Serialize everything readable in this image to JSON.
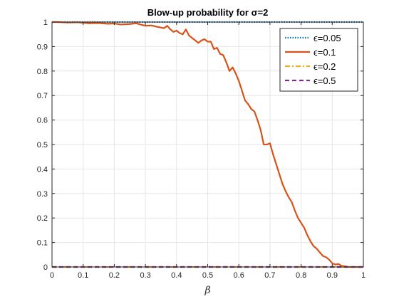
{
  "chart_data": {
    "type": "line",
    "title": "Blow-up probability for σ=2",
    "xlabel": "β",
    "ylabel": "",
    "xlim": [
      0,
      1
    ],
    "ylim": [
      0,
      1
    ],
    "x_ticks": [
      "0",
      "0.1",
      "0.2",
      "0.3",
      "0.4",
      "0.5",
      "0.6",
      "0.7",
      "0.8",
      "0.9",
      "1"
    ],
    "y_ticks": [
      "0",
      "0.1",
      "0.2",
      "0.3",
      "0.4",
      "0.5",
      "0.6",
      "0.7",
      "0.8",
      "0.9",
      "1"
    ],
    "grid": true,
    "legend_position": "top-right",
    "series": [
      {
        "name": "ϵ=0.05",
        "color": "#0072BD",
        "style": "dotted",
        "x": [
          0,
          1
        ],
        "y": [
          1,
          1
        ]
      },
      {
        "name": "ϵ=0.1",
        "color": "#D95319",
        "style": "solid",
        "x": [
          0,
          0.02,
          0.05,
          0.08,
          0.1,
          0.12,
          0.15,
          0.18,
          0.2,
          0.22,
          0.25,
          0.27,
          0.29,
          0.3,
          0.32,
          0.34,
          0.36,
          0.37,
          0.38,
          0.39,
          0.4,
          0.41,
          0.42,
          0.43,
          0.44,
          0.45,
          0.46,
          0.47,
          0.48,
          0.49,
          0.5,
          0.51,
          0.52,
          0.53,
          0.54,
          0.55,
          0.56,
          0.57,
          0.58,
          0.59,
          0.6,
          0.61,
          0.62,
          0.63,
          0.64,
          0.65,
          0.66,
          0.67,
          0.68,
          0.69,
          0.7,
          0.71,
          0.72,
          0.73,
          0.74,
          0.75,
          0.76,
          0.77,
          0.78,
          0.79,
          0.8,
          0.81,
          0.82,
          0.83,
          0.84,
          0.85,
          0.86,
          0.87,
          0.88,
          0.89,
          0.9,
          0.91,
          0.92,
          0.93,
          0.94,
          0.95,
          0.97,
          1.0
        ],
        "y": [
          1.0,
          1.0,
          0.998,
          0.999,
          0.997,
          0.995,
          0.996,
          0.993,
          0.994,
          0.99,
          0.992,
          0.995,
          0.988,
          0.985,
          0.986,
          0.98,
          0.975,
          0.985,
          0.97,
          0.96,
          0.965,
          0.955,
          0.95,
          0.97,
          0.945,
          0.935,
          0.925,
          0.915,
          0.925,
          0.93,
          0.92,
          0.92,
          0.89,
          0.895,
          0.87,
          0.865,
          0.835,
          0.8,
          0.815,
          0.79,
          0.76,
          0.72,
          0.68,
          0.665,
          0.645,
          0.635,
          0.6,
          0.56,
          0.5,
          0.5,
          0.505,
          0.46,
          0.42,
          0.38,
          0.34,
          0.31,
          0.285,
          0.265,
          0.23,
          0.2,
          0.18,
          0.16,
          0.13,
          0.105,
          0.085,
          0.075,
          0.06,
          0.045,
          0.04,
          0.03,
          0.015,
          0.01,
          0.012,
          0.005,
          0.003,
          0.0,
          0.0,
          0.0
        ]
      },
      {
        "name": "ϵ=0.2",
        "color": "#EDB120",
        "style": "dashdot",
        "x": [
          0,
          1
        ],
        "y": [
          0,
          0
        ]
      },
      {
        "name": "ϵ=0.5",
        "color": "#7E2F8E",
        "style": "dashed",
        "x": [
          0,
          1
        ],
        "y": [
          0,
          0
        ]
      }
    ]
  }
}
